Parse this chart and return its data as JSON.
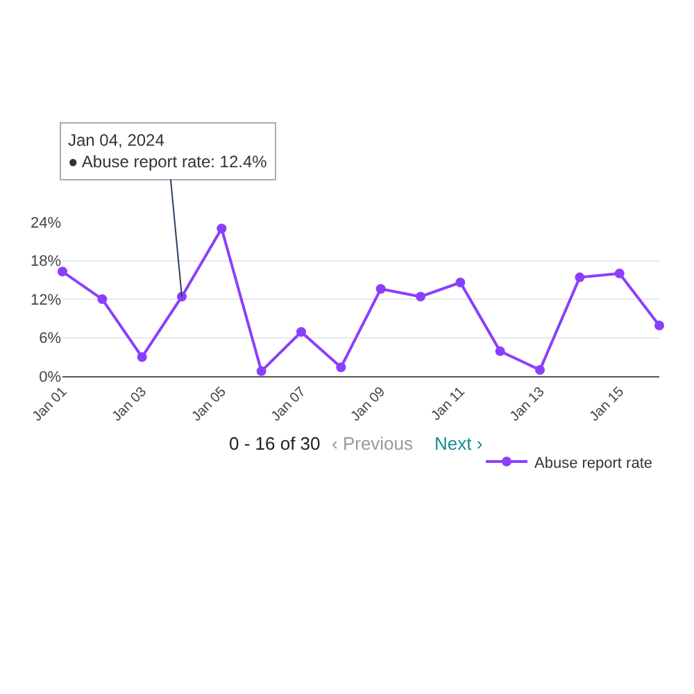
{
  "chart_data": {
    "type": "line",
    "x": [
      "2024-01-01",
      "2024-01-02",
      "2024-01-03",
      "2024-01-04",
      "2024-01-05",
      "2024-01-06",
      "2024-01-07",
      "2024-01-08",
      "2024-01-09",
      "2024-01-10",
      "2024-01-11",
      "2024-01-12",
      "2024-01-13",
      "2024-01-14",
      "2024-01-15",
      "2024-01-16"
    ],
    "series": [
      {
        "name": "Abuse report rate",
        "color": "#8a3ffc",
        "values": [
          16.3,
          12.0,
          3.0,
          12.4,
          23,
          0.8,
          6.9,
          1.4,
          13.6,
          12.4,
          14.6,
          3.9,
          1.0,
          15.4,
          16.0,
          7.9
        ]
      }
    ],
    "xlim": [
      "2024-01-01",
      "2024-01-16"
    ],
    "xticks": [
      {
        "value": "2024-01-01",
        "label": "Jan 01"
      },
      {
        "value": "2024-01-03",
        "label": "Jan 03"
      },
      {
        "value": "2024-01-05",
        "label": "Jan 05"
      },
      {
        "value": "2024-01-07",
        "label": "Jan 07"
      },
      {
        "value": "2024-01-09",
        "label": "Jan 09"
      },
      {
        "value": "2024-01-11",
        "label": "Jan 11"
      },
      {
        "value": "2024-01-13",
        "label": "Jan 13"
      },
      {
        "value": "2024-01-15",
        "label": "Jan 15"
      }
    ],
    "ylim": [
      0,
      24
    ],
    "yticks": [
      {
        "value": 0,
        "label": "0%"
      },
      {
        "value": 6,
        "label": "6%"
      },
      {
        "value": 12,
        "label": "12%"
      },
      {
        "value": 18,
        "label": "18%"
      },
      {
        "value": 24,
        "label": "24%"
      }
    ],
    "annotations": [
      {
        "text": "Jan 04, 2024\n● Abuse report rate: 12.4%",
        "x": "2024-01-04",
        "y": 12.4
      },
      "0 - 16 of 30",
      "‹ Previous",
      "Next ›"
    ],
    "grid": "y",
    "legend": "bottom right",
    "marker": "circle",
    "line_style": "solid"
  }
}
